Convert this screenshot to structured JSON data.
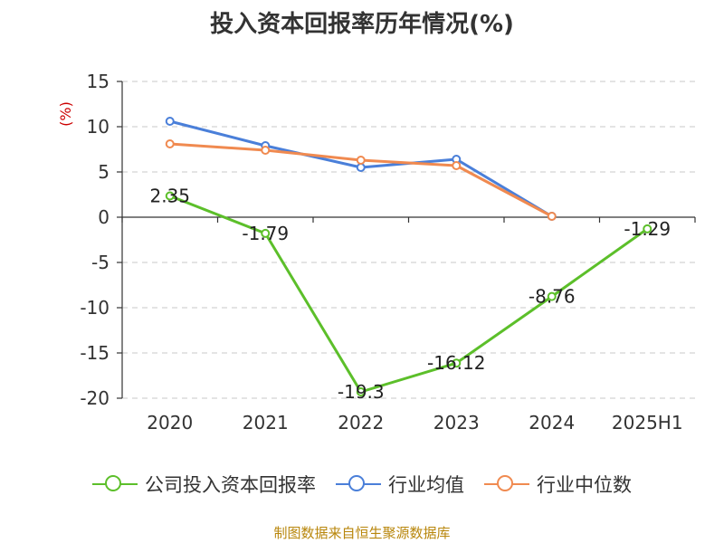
{
  "chart_data": {
    "type": "line",
    "title": "投入资本回报率历年情况(%)",
    "ylabel": "(%)",
    "categories": [
      "2020",
      "2021",
      "2022",
      "2023",
      "2024",
      "2025H1"
    ],
    "ylim": [
      -20,
      15
    ],
    "yticks": [
      15,
      10,
      5,
      0,
      -5,
      -10,
      -15,
      -20
    ],
    "grid": true,
    "legend_position": "bottom",
    "series": [
      {
        "name": "公司投入资本回报率",
        "color": "#5cbf2a",
        "values": [
          2.35,
          -1.79,
          -19.3,
          -16.12,
          -8.76,
          -1.29
        ],
        "labels": [
          "2.35",
          "-1.79",
          "-19.3",
          "-16.12",
          "-8.76",
          "-1.29"
        ]
      },
      {
        "name": "行业均值",
        "color": "#4a7fd9",
        "values": [
          10.6,
          7.9,
          5.5,
          6.4,
          0.1,
          null
        ]
      },
      {
        "name": "行业中位数",
        "color": "#f08a50",
        "values": [
          8.1,
          7.4,
          6.3,
          5.7,
          0.1,
          null
        ]
      }
    ]
  },
  "source": "制图数据来自恒生聚源数据库"
}
